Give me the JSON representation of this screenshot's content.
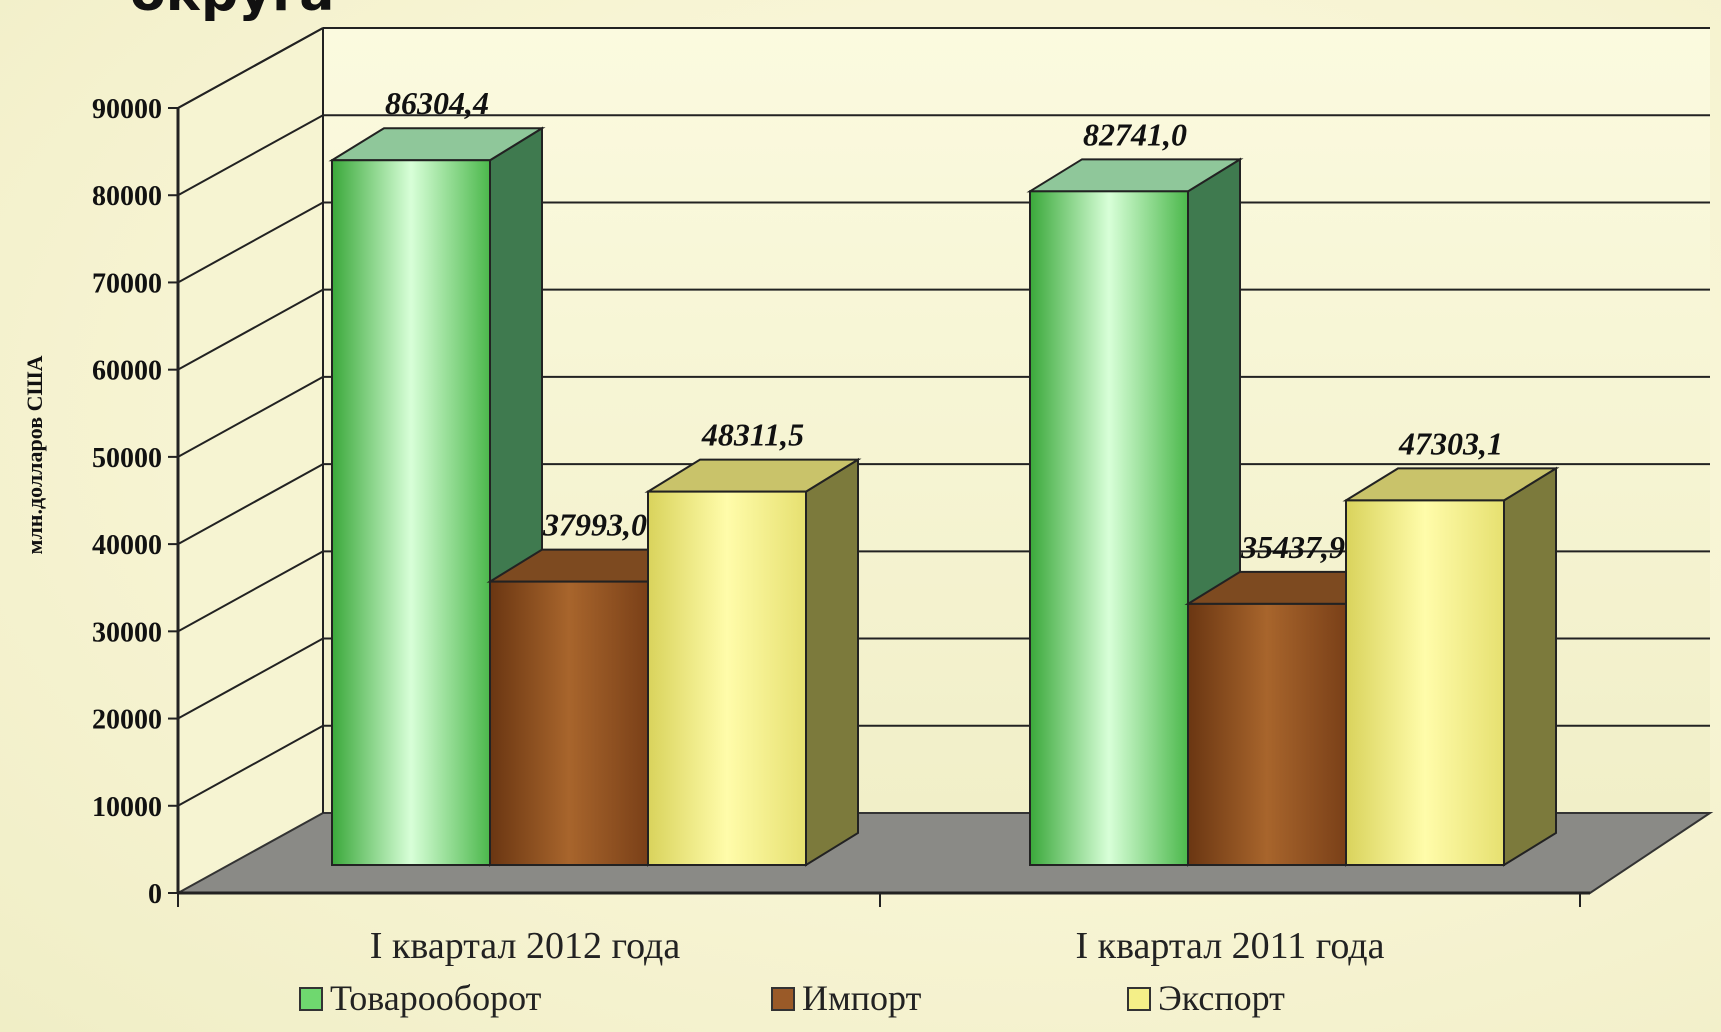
{
  "chart_data": {
    "type": "bar",
    "title": "округа",
    "ylabel": "млн.долларов США",
    "xlabel": "",
    "ylim": [
      0,
      90000
    ],
    "yticks": [
      0,
      10000,
      20000,
      30000,
      40000,
      50000,
      60000,
      70000,
      80000,
      90000
    ],
    "ytick_labels": [
      "0",
      "10000",
      "20000",
      "30000",
      "40000",
      "50000",
      "60000",
      "70000",
      "80000",
      "90000"
    ],
    "categories": [
      "I квартал 2012 года",
      "I квартал 2011 года"
    ],
    "series": [
      {
        "name": "Товарооборот",
        "values": [
          86304.4,
          82741.0
        ],
        "labels": [
          "86304,4",
          "82741,0"
        ],
        "colors": {
          "front": "#6fd86f",
          "side": "#3f7a4f",
          "top": "#8fc79a"
        }
      },
      {
        "name": "Импорт",
        "values": [
          37993.0,
          35437.9
        ],
        "labels": [
          "37993,0",
          "35437,9"
        ],
        "colors": {
          "front": "#9a5a28",
          "side": "#6a3a16",
          "top": "#7d4a20"
        }
      },
      {
        "name": "Экспорт",
        "values": [
          48311.5,
          47303.1
        ],
        "labels": [
          "48311,5",
          "47303,1"
        ],
        "colors": {
          "front": "#f4ef88",
          "side": "#7c7a3c",
          "top": "#c9c36a"
        }
      }
    ],
    "grid": true,
    "legend_position": "bottom",
    "style": "3d-clustered-column"
  }
}
